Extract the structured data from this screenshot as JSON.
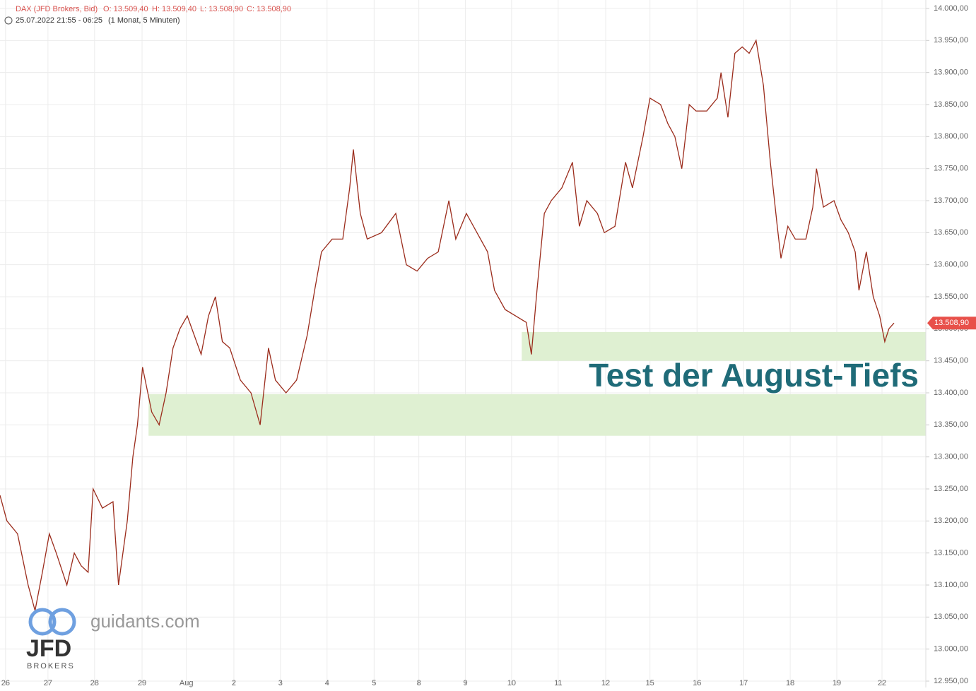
{
  "chart_data": {
    "type": "line",
    "header": {
      "symbol": "DAX (JFD Brokers, Bid)",
      "open": "O: 13.509,40",
      "high": "H: 13.509,40",
      "low": "L: 13.508,90",
      "close": "C: 13.508,90",
      "range": "25.07.2022 21:55 - 06:25",
      "interval": "(1 Monat, 5 Minuten)"
    },
    "annotation": "Test der August-Tiefs",
    "last_price": {
      "value": 13508.9,
      "label": "13.508,90"
    },
    "zones": [
      {
        "x0": 11.19,
        "top": 13495,
        "bottom": 13450
      },
      {
        "x0": 3.1,
        "top": 13398,
        "bottom": 13333
      }
    ],
    "logo": {
      "site": "guidants.com",
      "brand": "JFD",
      "sub": "BROKERS"
    },
    "color": "#9b2c1c",
    "zone_color": "#dff0d2",
    "annotation_color": "#1f6b78",
    "grid": true,
    "xlim": [
      -0.12,
      19.95
    ],
    "ylim": [
      12950,
      14000
    ],
    "xticks": [
      {
        "value": 0,
        "label": "26"
      },
      {
        "value": 0.92,
        "label": "27"
      },
      {
        "value": 1.93,
        "label": "28"
      },
      {
        "value": 2.96,
        "label": "29"
      },
      {
        "value": 3.92,
        "label": "Aug"
      },
      {
        "value": 4.95,
        "label": "2"
      },
      {
        "value": 5.96,
        "label": "3"
      },
      {
        "value": 6.97,
        "label": "4"
      },
      {
        "value": 7.99,
        "label": "5"
      },
      {
        "value": 8.96,
        "label": "8"
      },
      {
        "value": 9.97,
        "label": "9"
      },
      {
        "value": 10.97,
        "label": "10"
      },
      {
        "value": 11.98,
        "label": "11"
      },
      {
        "value": 13.01,
        "label": "12"
      },
      {
        "value": 13.97,
        "label": "15"
      },
      {
        "value": 14.99,
        "label": "16"
      },
      {
        "value": 16.0,
        "label": "17"
      },
      {
        "value": 17.01,
        "label": "18"
      },
      {
        "value": 18.02,
        "label": "19"
      },
      {
        "value": 19.0,
        "label": "22"
      }
    ],
    "yticks": [
      {
        "value": 12950,
        "label": "12.950,00"
      },
      {
        "value": 13000,
        "label": "13.000,00"
      },
      {
        "value": 13050,
        "label": "13.050,00"
      },
      {
        "value": 13100,
        "label": "13.100,00"
      },
      {
        "value": 13150,
        "label": "13.150,00"
      },
      {
        "value": 13200,
        "label": "13.200,00"
      },
      {
        "value": 13250,
        "label": "13.250,00"
      },
      {
        "value": 13300,
        "label": "13.300,00"
      },
      {
        "value": 13350,
        "label": "13.350,00"
      },
      {
        "value": 13400,
        "label": "13.400,00"
      },
      {
        "value": 13450,
        "label": "13.450,00"
      },
      {
        "value": 13500,
        "label": "13.500,00"
      },
      {
        "value": 13550,
        "label": "13.550,00"
      },
      {
        "value": 13600,
        "label": "13.600,00"
      },
      {
        "value": 13650,
        "label": "13.650,00"
      },
      {
        "value": 13700,
        "label": "13.700,00"
      },
      {
        "value": 13750,
        "label": "13.750,00"
      },
      {
        "value": 13800,
        "label": "13.800,00"
      },
      {
        "value": 13850,
        "label": "13.850,00"
      },
      {
        "value": 13900,
        "label": "13.900,00"
      },
      {
        "value": 13950,
        "label": "13.950,00"
      },
      {
        "value": 14000,
        "label": "14.000,00"
      }
    ],
    "x": [
      -0.12,
      0.03,
      0.26,
      0.49,
      0.64,
      0.8,
      0.95,
      1.1,
      1.33,
      1.49,
      1.64,
      1.79,
      1.9,
      2.1,
      2.33,
      2.45,
      2.64,
      2.76,
      2.86,
      2.97,
      3.17,
      3.33,
      3.48,
      3.63,
      3.78,
      3.94,
      4.09,
      4.24,
      4.4,
      4.55,
      4.7,
      4.86,
      5.09,
      5.32,
      5.52,
      5.7,
      5.85,
      6.08,
      6.31,
      6.54,
      6.7,
      6.85,
      7.08,
      7.31,
      7.46,
      7.54,
      7.69,
      7.84,
      8.15,
      8.46,
      8.69,
      8.92,
      9.15,
      9.38,
      9.61,
      9.76,
      9.99,
      10.22,
      10.45,
      10.6,
      10.83,
      11.06,
      11.29,
      11.4,
      11.52,
      11.68,
      11.83,
      12.06,
      12.29,
      12.44,
      12.6,
      12.83,
      12.98,
      13.21,
      13.44,
      13.59,
      13.82,
      13.97,
      14.2,
      14.36,
      14.51,
      14.66,
      14.82,
      14.97,
      15.2,
      15.43,
      15.51,
      15.66,
      15.81,
      15.97,
      16.12,
      16.27,
      16.43,
      16.58,
      16.73,
      16.81,
      16.96,
      17.12,
      17.35,
      17.5,
      17.58,
      17.73,
      17.96,
      18.11,
      18.27,
      18.42,
      18.5,
      18.66,
      18.81,
      18.95,
      19.06,
      19.15,
      19.26
    ],
    "values": [
      13240,
      13200,
      13180,
      13100,
      13060,
      13120,
      13180,
      13150,
      13100,
      13150,
      13130,
      13120,
      13250,
      13220,
      13230,
      13100,
      13200,
      13300,
      13350,
      13440,
      13370,
      13350,
      13400,
      13470,
      13500,
      13520,
      13490,
      13460,
      13520,
      13550,
      13480,
      13470,
      13420,
      13400,
      13350,
      13470,
      13420,
      13400,
      13420,
      13490,
      13560,
      13620,
      13640,
      13640,
      13720,
      13780,
      13680,
      13640,
      13650,
      13680,
      13600,
      13590,
      13610,
      13620,
      13700,
      13640,
      13680,
      13650,
      13620,
      13560,
      13530,
      13520,
      13510,
      13460,
      13560,
      13680,
      13700,
      13720,
      13760,
      13660,
      13700,
      13680,
      13650,
      13660,
      13760,
      13720,
      13800,
      13860,
      13850,
      13820,
      13800,
      13750,
      13850,
      13840,
      13840,
      13860,
      13900,
      13830,
      13930,
      13940,
      13930,
      13950,
      13880,
      13760,
      13660,
      13610,
      13660,
      13640,
      13640,
      13690,
      13750,
      13690,
      13700,
      13670,
      13650,
      13620,
      13560,
      13620,
      13550,
      13520,
      13480,
      13500,
      13509
    ]
  }
}
